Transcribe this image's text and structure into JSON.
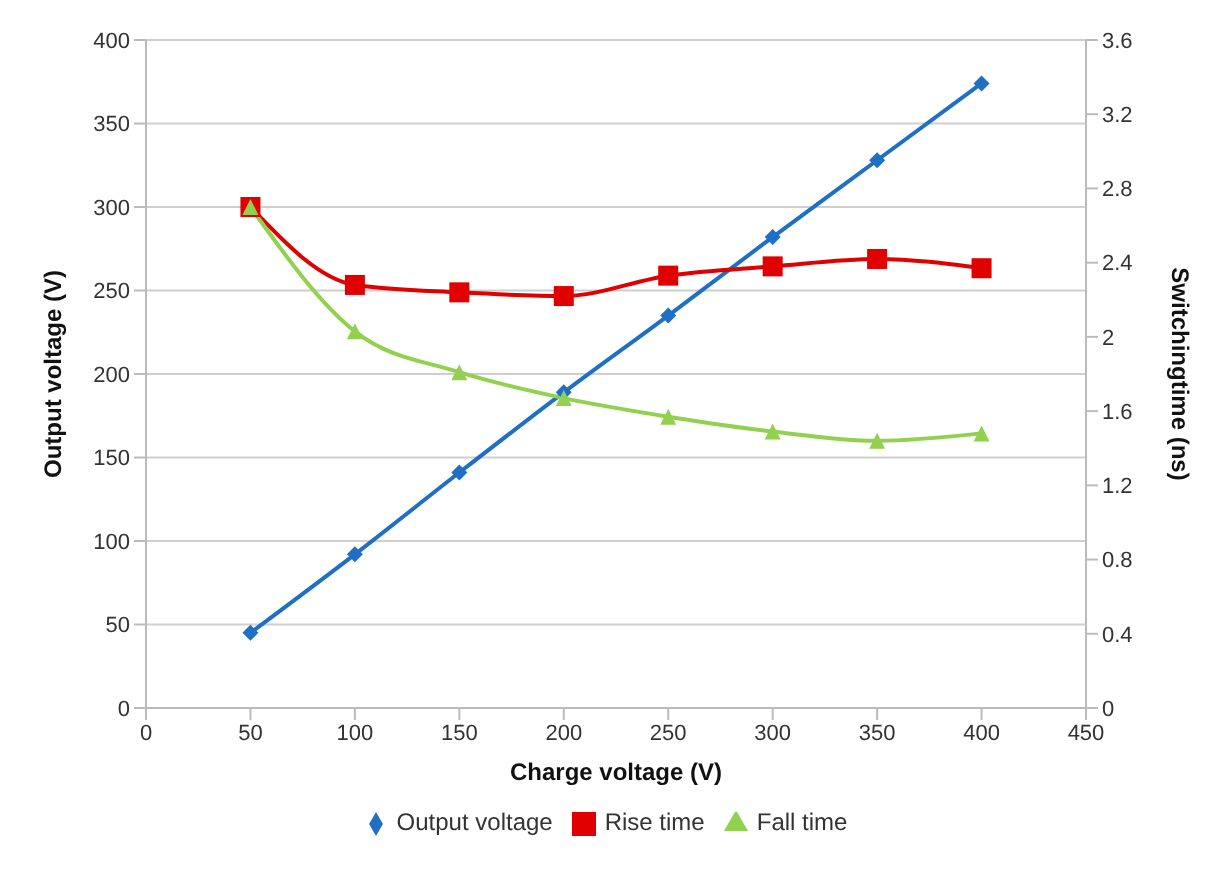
{
  "chart_data": {
    "type": "line",
    "xlabel": "Charge voltage (V)",
    "ylabel": "Output voltage (V)",
    "y2label": "Switchingtime (ns)",
    "x": [
      50,
      100,
      150,
      200,
      250,
      300,
      350,
      400
    ],
    "series": [
      {
        "name": "Output voltage",
        "color": "#1f6fc5",
        "marker": "diamond",
        "values": [
          45,
          92,
          141,
          189,
          235,
          282,
          328,
          374
        ]
      },
      {
        "name": "Rise time",
        "color": "#e00000",
        "marker": "square",
        "axis": "y2",
        "values": [
          2.7,
          2.28,
          2.24,
          2.22,
          2.33,
          2.38,
          2.42,
          2.37
        ]
      },
      {
        "name": "Fall time",
        "color": "#92d050",
        "marker": "triangle",
        "axis": "y2",
        "values": [
          2.7,
          2.03,
          1.81,
          1.67,
          1.57,
          1.49,
          1.44,
          1.48
        ]
      }
    ],
    "xlim": [
      0,
      450
    ],
    "xticks": [
      0,
      50,
      100,
      150,
      200,
      250,
      300,
      350,
      400,
      450
    ],
    "ylim": [
      0,
      400
    ],
    "yticks": [
      0,
      50,
      100,
      150,
      200,
      250,
      300,
      350,
      400
    ],
    "y2lim": [
      0,
      3.6
    ],
    "y2ticks": [
      0,
      0.4,
      0.8,
      1.2,
      1.6,
      2,
      2.4,
      2.8,
      3.2,
      3.6
    ],
    "grid": "y",
    "legend": "bottom",
    "line_style": "solid"
  }
}
